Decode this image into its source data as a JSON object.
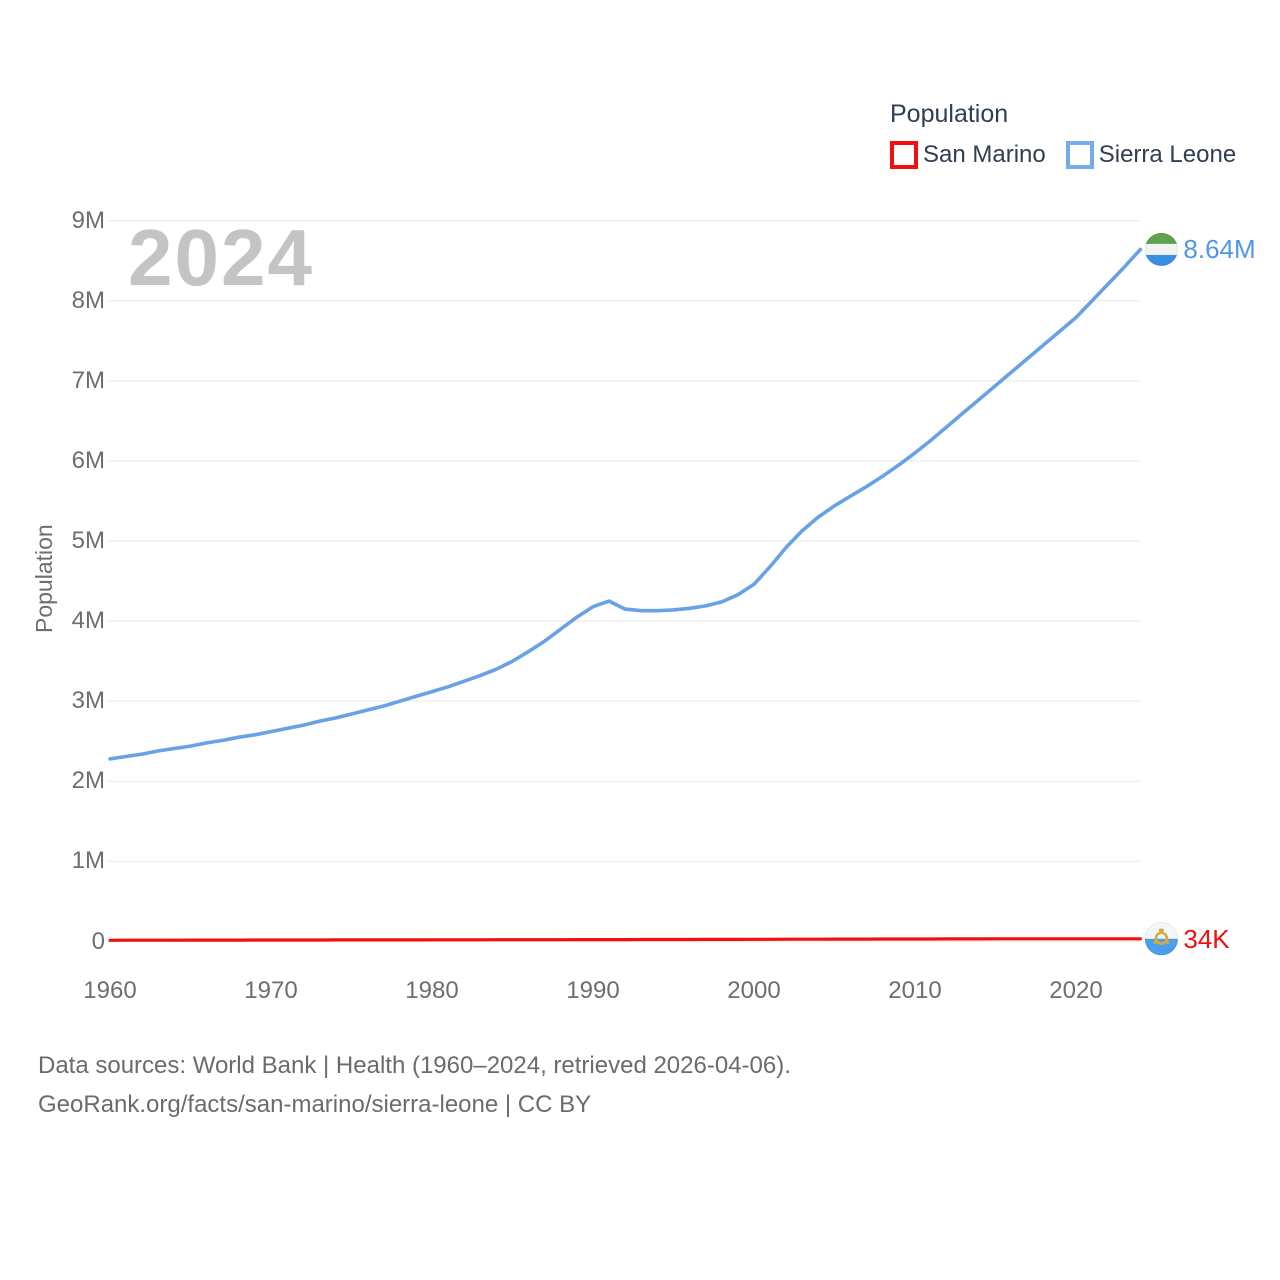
{
  "legend": {
    "title": "Population",
    "items": [
      {
        "label": "San Marino",
        "color": "#f20f0f"
      },
      {
        "label": "Sierra Leone",
        "color": "#74abe8"
      }
    ]
  },
  "footer": {
    "line1": "Data sources: World Bank | Health (1960–2024, retrieved 2026-04-06).",
    "line2": "GeoRank.org/facts/san-marino/sierra-leone | CC BY"
  },
  "chart_data": {
    "type": "line",
    "title": "Population",
    "watermark": "2024",
    "ylabel": "Population",
    "xlabel": "",
    "grid": true,
    "legend_position": "top-right",
    "x_start": 1960,
    "x_end": 2024,
    "x_tick_values": [
      1960,
      1970,
      1980,
      1990,
      2000,
      2010,
      2020
    ],
    "x_tick_labels": [
      "1960",
      "1970",
      "1980",
      "1990",
      "2000",
      "2010",
      "2020"
    ],
    "y_tick_values_millions": [
      0,
      1,
      2,
      3,
      4,
      5,
      6,
      7,
      8,
      9
    ],
    "y_tick_labels": [
      "0",
      "1M",
      "2M",
      "3M",
      "4M",
      "5M",
      "6M",
      "7M",
      "8M",
      "9M"
    ],
    "ylim_millions": [
      0,
      9
    ],
    "series": [
      {
        "name": "San Marino",
        "color": "#f20f0f",
        "end_label": "34K",
        "end_label_color": "#f20f0f",
        "flag": "san-marino",
        "values_millions": [
          0.0155,
          0.0158,
          0.0161,
          0.0165,
          0.0168,
          0.0171,
          0.0174,
          0.0177,
          0.018,
          0.0183,
          0.0187,
          0.0189,
          0.0191,
          0.0193,
          0.0194,
          0.0196,
          0.0198,
          0.02,
          0.0203,
          0.0205,
          0.0208,
          0.0211,
          0.0213,
          0.0216,
          0.0219,
          0.0222,
          0.0224,
          0.0227,
          0.023,
          0.0232,
          0.0235,
          0.0238,
          0.0242,
          0.0245,
          0.0248,
          0.0252,
          0.0255,
          0.0258,
          0.0262,
          0.0265,
          0.0269,
          0.0275,
          0.0281,
          0.0286,
          0.0292,
          0.0297,
          0.0301,
          0.0304,
          0.0308,
          0.0311,
          0.0314,
          0.0317,
          0.0321,
          0.0324,
          0.0327,
          0.0331,
          0.0333,
          0.0335,
          0.0337,
          0.0338,
          0.0339,
          0.034,
          0.034,
          0.034,
          0.034
        ]
      },
      {
        "name": "Sierra Leone",
        "color": "#68a1e5",
        "end_label": "8.64M",
        "end_label_color": "#4f97e8",
        "flag": "sierra-leone",
        "values_millions": [
          2.28,
          2.31,
          2.34,
          2.38,
          2.41,
          2.44,
          2.48,
          2.51,
          2.55,
          2.58,
          2.62,
          2.66,
          2.7,
          2.75,
          2.79,
          2.84,
          2.89,
          2.94,
          3.0,
          3.06,
          3.12,
          3.18,
          3.25,
          3.32,
          3.4,
          3.5,
          3.62,
          3.75,
          3.9,
          4.05,
          4.18,
          4.25,
          4.15,
          4.13,
          4.13,
          4.14,
          4.16,
          4.19,
          4.24,
          4.33,
          4.46,
          4.68,
          4.92,
          5.13,
          5.3,
          5.44,
          5.56,
          5.68,
          5.81,
          5.95,
          6.1,
          6.26,
          6.43,
          6.6,
          6.77,
          6.94,
          7.11,
          7.28,
          7.45,
          7.62,
          7.79,
          8.0,
          8.21,
          8.42,
          8.64
        ]
      }
    ],
    "flag_colors": {
      "sierra_leone_green": "#5ca24f",
      "sierra_leone_white": "#f2f4f2",
      "sierra_leone_blue": "#3b8fe2",
      "san_marino_white": "#f4f6f8",
      "san_marino_blue": "#4aa0e8",
      "san_marino_gold": "#d9a940"
    }
  }
}
